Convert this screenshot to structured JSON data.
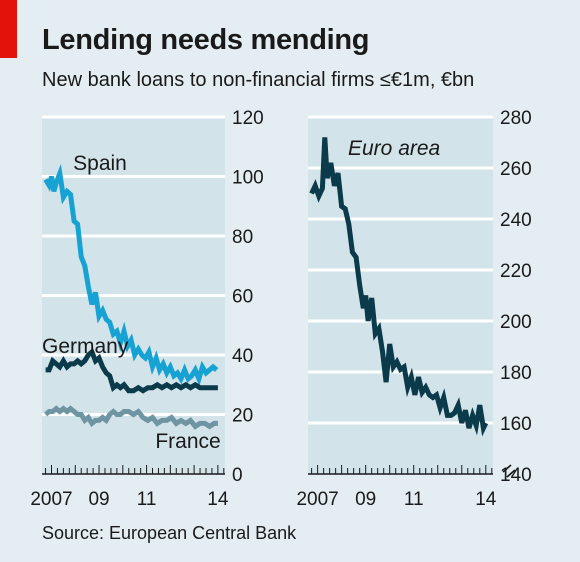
{
  "header": {
    "title": "Lending needs mending",
    "subtitle": "New bank loans to non-financial firms ≤€1m, €bn"
  },
  "footer": {
    "source": "Source: European Central Bank"
  },
  "colors": {
    "background": "#e4edf1",
    "panel": "#d2e3ea",
    "gridline": "#ffffff",
    "spain": "#17a2d4",
    "germany": "#0b3a4a",
    "france": "#6f95a3",
    "euro_area": "#0b3a4a",
    "accent": "#e3120b"
  },
  "chart_data": [
    {
      "type": "line",
      "xlabel": "",
      "ylabel": "",
      "x_ticks": [
        "2007",
        "09",
        "11",
        "14"
      ],
      "x_tick_values": [
        2007,
        2009,
        2011,
        2014
      ],
      "xlim": [
        2006.6,
        2014.3
      ],
      "ylim": [
        0,
        120
      ],
      "y_ticks": [
        0,
        20,
        40,
        60,
        80,
        100,
        120
      ],
      "grid": true,
      "series": [
        {
          "name": "Spain",
          "color_key": "spain",
          "x": [
            2006.75,
            2006.9,
            2007.0,
            2007.1,
            2007.2,
            2007.35,
            2007.5,
            2007.65,
            2007.8,
            2007.95,
            2008.1,
            2008.25,
            2008.4,
            2008.55,
            2008.7,
            2008.85,
            2009.0,
            2009.15,
            2009.3,
            2009.45,
            2009.6,
            2009.75,
            2009.9,
            2010.05,
            2010.2,
            2010.35,
            2010.5,
            2010.65,
            2010.8,
            2010.95,
            2011.1,
            2011.25,
            2011.4,
            2011.55,
            2011.7,
            2011.85,
            2012.0,
            2012.15,
            2012.3,
            2012.45,
            2012.6,
            2012.75,
            2012.9,
            2013.05,
            2013.2,
            2013.35,
            2013.5,
            2013.65,
            2013.8,
            2013.95
          ],
          "y": [
            99,
            97,
            100,
            95,
            98,
            101,
            93,
            95,
            94,
            85,
            84,
            73,
            70,
            63,
            57,
            61,
            53,
            55,
            52,
            51,
            47,
            48,
            44,
            48,
            43,
            45,
            40,
            42,
            40,
            39,
            41,
            36,
            39,
            35,
            37,
            34,
            36,
            33,
            34,
            32,
            35,
            32,
            33,
            35,
            32,
            36,
            34,
            35,
            36,
            35
          ]
        },
        {
          "name": "Germany",
          "color_key": "germany",
          "x": [
            2006.75,
            2006.9,
            2007.05,
            2007.2,
            2007.35,
            2007.5,
            2007.65,
            2007.8,
            2007.95,
            2008.1,
            2008.25,
            2008.4,
            2008.55,
            2008.7,
            2008.85,
            2009.0,
            2009.15,
            2009.3,
            2009.45,
            2009.6,
            2009.75,
            2009.9,
            2010.05,
            2010.25,
            2010.45,
            2010.65,
            2010.85,
            2011.05,
            2011.25,
            2011.45,
            2011.65,
            2011.85,
            2012.05,
            2012.25,
            2012.45,
            2012.65,
            2012.85,
            2013.05,
            2013.25,
            2013.45,
            2013.65,
            2013.85,
            2014.0
          ],
          "y": [
            35,
            35,
            38,
            37,
            36,
            38,
            36,
            37,
            37,
            38,
            37,
            38,
            40,
            41,
            38,
            39,
            36,
            34,
            33,
            29,
            30,
            29,
            30,
            28,
            28,
            29,
            28,
            29,
            29,
            30,
            29,
            30,
            29,
            30,
            29,
            30,
            29,
            30,
            29,
            29,
            29,
            29,
            29
          ]
        },
        {
          "name": "France",
          "color_key": "france",
          "x": [
            2006.75,
            2006.9,
            2007.05,
            2007.2,
            2007.35,
            2007.5,
            2007.65,
            2007.8,
            2007.95,
            2008.1,
            2008.25,
            2008.4,
            2008.55,
            2008.7,
            2008.85,
            2009.0,
            2009.15,
            2009.3,
            2009.45,
            2009.6,
            2009.75,
            2009.9,
            2010.05,
            2010.25,
            2010.45,
            2010.65,
            2010.85,
            2011.05,
            2011.25,
            2011.45,
            2011.65,
            2011.85,
            2012.05,
            2012.25,
            2012.45,
            2012.65,
            2012.85,
            2013.05,
            2013.25,
            2013.45,
            2013.65,
            2013.85,
            2014.0
          ],
          "y": [
            20,
            21,
            21,
            22,
            21,
            22,
            21,
            22,
            21,
            20,
            20,
            18,
            19,
            17,
            18,
            18,
            19,
            18,
            20,
            21,
            20,
            20,
            21,
            21,
            20,
            21,
            19,
            18,
            19,
            17,
            18,
            18,
            19,
            17,
            18,
            17,
            18,
            16,
            17,
            17,
            16,
            17,
            17
          ]
        }
      ],
      "annotations": [
        "Spain",
        "Germany",
        "France"
      ]
    },
    {
      "type": "line",
      "xlabel": "",
      "ylabel": "",
      "x_ticks": [
        "2007",
        "09",
        "11",
        "14"
      ],
      "x_tick_values": [
        2007,
        2009,
        2011,
        2014
      ],
      "xlim": [
        2006.6,
        2014.3
      ],
      "ylim": [
        140,
        280
      ],
      "y_ticks": [
        140,
        160,
        180,
        200,
        220,
        240,
        260,
        280
      ],
      "axis_break": true,
      "grid": true,
      "series": [
        {
          "name": "Euro area",
          "color_key": "euro_area",
          "x": [
            2006.75,
            2006.9,
            2007.05,
            2007.2,
            2007.3,
            2007.4,
            2007.55,
            2007.7,
            2007.85,
            2008.0,
            2008.15,
            2008.3,
            2008.45,
            2008.6,
            2008.75,
            2008.9,
            2009.0,
            2009.1,
            2009.25,
            2009.4,
            2009.55,
            2009.7,
            2009.85,
            2010.0,
            2010.15,
            2010.3,
            2010.45,
            2010.6,
            2010.75,
            2010.9,
            2011.05,
            2011.2,
            2011.35,
            2011.5,
            2011.65,
            2011.8,
            2011.95,
            2012.1,
            2012.25,
            2012.4,
            2012.55,
            2012.7,
            2012.85,
            2013.0,
            2013.15,
            2013.3,
            2013.45,
            2013.6,
            2013.75,
            2013.9,
            2014.0
          ],
          "y": [
            250,
            253,
            249,
            252,
            272,
            256,
            262,
            253,
            258,
            245,
            244,
            238,
            227,
            225,
            214,
            205,
            210,
            200,
            209,
            195,
            197,
            188,
            176,
            191,
            182,
            184,
            181,
            182,
            174,
            178,
            171,
            178,
            172,
            174,
            171,
            170,
            171,
            166,
            170,
            163,
            163,
            164,
            167,
            160,
            165,
            158,
            163,
            159,
            167,
            158,
            160
          ]
        }
      ],
      "annotations": [
        "Euro area"
      ]
    }
  ]
}
